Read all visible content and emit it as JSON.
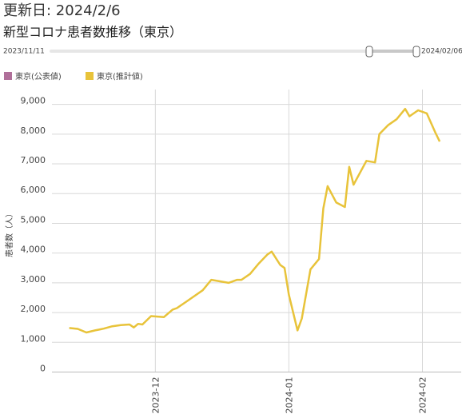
{
  "chart_data": {
    "type": "line",
    "updated": "更新日: 2024/2/6",
    "title": "新型コロナ患者数推移（東京）",
    "slider": {
      "start": "2023/11/11",
      "end": "2024/02/06"
    },
    "y_label": "患者数（人）",
    "x": [
      "2023-11-11",
      "2023-11-13",
      "2023-11-15",
      "2023-11-17",
      "2023-11-19",
      "2023-11-21",
      "2023-11-23",
      "2023-11-25",
      "2023-11-26",
      "2023-11-27",
      "2023-11-28",
      "2023-11-30",
      "2023-12-03",
      "2023-12-05",
      "2023-12-06",
      "2023-12-08",
      "2023-12-10",
      "2023-12-12",
      "2023-12-14",
      "2023-12-16",
      "2023-12-18",
      "2023-12-20",
      "2023-12-21",
      "2023-12-23",
      "2023-12-25",
      "2023-12-27",
      "2023-12-28",
      "2023-12-30",
      "2023-12-31",
      "2024-01-01",
      "2024-01-03",
      "2024-01-04",
      "2024-01-06",
      "2024-01-08",
      "2024-01-09",
      "2024-01-10",
      "2024-01-12",
      "2024-01-14",
      "2024-01-15",
      "2024-01-16",
      "2024-01-19",
      "2024-01-21",
      "2024-01-22",
      "2024-01-24",
      "2024-01-26",
      "2024-01-28",
      "2024-01-29",
      "2024-01-31",
      "2024-02-02",
      "2024-02-04",
      "2024-02-05"
    ],
    "series": [
      {
        "name": "東京(公表値)",
        "color": "#b0709a",
        "values": [
          null,
          null,
          null,
          null,
          null,
          null,
          null,
          null,
          null,
          null,
          null,
          null,
          null,
          null,
          null,
          null,
          null,
          null,
          null,
          null,
          null,
          null,
          null,
          null,
          null,
          null,
          null,
          null,
          null,
          null,
          null,
          null,
          null,
          null,
          null,
          null,
          null,
          null,
          null,
          null,
          null,
          null,
          null,
          null,
          null,
          null,
          null,
          null,
          null,
          null,
          null
        ]
      },
      {
        "name": "東京(推計値)",
        "color": "#e8c33a",
        "values": [
          1480,
          1450,
          1330,
          1400,
          1460,
          1540,
          1580,
          1600,
          1500,
          1620,
          1600,
          1880,
          1850,
          2100,
          2150,
          2350,
          2550,
          2750,
          3100,
          3050,
          3000,
          3100,
          3100,
          3300,
          3650,
          3950,
          4050,
          3600,
          3500,
          2600,
          1400,
          1800,
          3450,
          3800,
          5500,
          6250,
          5700,
          5550,
          6900,
          6300,
          7100,
          7050,
          8000,
          8300,
          8500,
          8850,
          8600,
          8800,
          8700,
          8050,
          7750
        ]
      }
    ],
    "xlim": [
      "2023-11-07",
      "2024-02-10"
    ],
    "xticks": [
      {
        "value": "2023-12-01",
        "label": "2023-12"
      },
      {
        "value": "2024-01-01",
        "label": "2024-01"
      },
      {
        "value": "2024-02-01",
        "label": "2024-02"
      }
    ],
    "ylim": [
      0,
      9500
    ],
    "yticks": [
      0,
      {
        "value": 1000,
        "label": "1,000"
      },
      {
        "value": 2000,
        "label": "2,000"
      },
      {
        "value": 3000,
        "label": "3,000"
      },
      {
        "value": 4000,
        "label": "4,000"
      },
      {
        "value": 5000,
        "label": "5,000"
      },
      {
        "value": 6000,
        "label": "6,000"
      },
      {
        "value": 7000,
        "label": "7,000"
      },
      {
        "value": 8000,
        "label": "8,000"
      },
      {
        "value": 9000,
        "label": "9,000"
      }
    ],
    "grid": true
  }
}
